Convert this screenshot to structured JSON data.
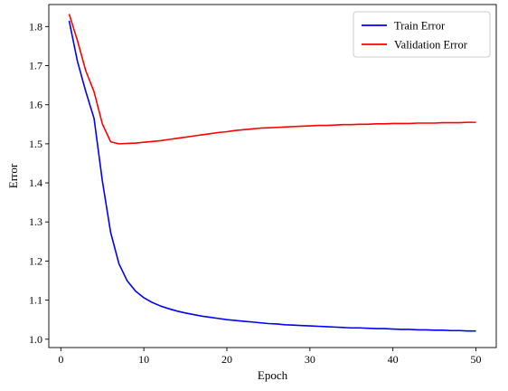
{
  "chart_data": {
    "type": "line",
    "xlabel": "Epoch",
    "ylabel": "Error",
    "xlim": [
      -1.45,
      52.45
    ],
    "ylim": [
      0.9786,
      1.8564
    ],
    "xticks": [
      0,
      10,
      20,
      30,
      40,
      50
    ],
    "yticks": [
      1.0,
      1.1,
      1.2,
      1.3,
      1.4,
      1.5,
      1.6,
      1.7,
      1.8
    ],
    "ytick_labels": [
      "1.0",
      "1.1",
      "1.2",
      "1.3",
      "1.4",
      "1.5",
      "1.6",
      "1.7",
      "1.8"
    ],
    "grid": false,
    "legend_position": "top-right",
    "x": [
      1,
      2,
      3,
      4,
      5,
      6,
      7,
      8,
      9,
      10,
      11,
      12,
      13,
      14,
      15,
      16,
      17,
      18,
      19,
      20,
      21,
      22,
      23,
      24,
      25,
      26,
      27,
      28,
      29,
      30,
      31,
      32,
      33,
      34,
      35,
      36,
      37,
      38,
      39,
      40,
      41,
      42,
      43,
      44,
      45,
      46,
      47,
      48,
      49,
      50
    ],
    "series": [
      {
        "name": "Train Error",
        "color": "#0000ff",
        "values": [
          1.815,
          1.711,
          1.634,
          1.565,
          1.405,
          1.273,
          1.193,
          1.149,
          1.123,
          1.106,
          1.094,
          1.085,
          1.078,
          1.072,
          1.067,
          1.063,
          1.059,
          1.056,
          1.053,
          1.05,
          1.048,
          1.046,
          1.044,
          1.042,
          1.04,
          1.039,
          1.037,
          1.036,
          1.035,
          1.034,
          1.033,
          1.032,
          1.031,
          1.03,
          1.029,
          1.029,
          1.028,
          1.027,
          1.027,
          1.026,
          1.025,
          1.025,
          1.024,
          1.024,
          1.023,
          1.023,
          1.022,
          1.022,
          1.021,
          1.021
        ]
      },
      {
        "name": "Validation Error",
        "color": "#ff0000",
        "values": [
          1.832,
          1.764,
          1.687,
          1.633,
          1.551,
          1.505,
          1.5,
          1.501,
          1.502,
          1.504,
          1.506,
          1.508,
          1.511,
          1.514,
          1.517,
          1.52,
          1.523,
          1.526,
          1.529,
          1.531,
          1.534,
          1.536,
          1.538,
          1.54,
          1.541,
          1.542,
          1.543,
          1.544,
          1.545,
          1.546,
          1.547,
          1.547,
          1.548,
          1.549,
          1.549,
          1.55,
          1.55,
          1.551,
          1.551,
          1.552,
          1.552,
          1.552,
          1.553,
          1.553,
          1.553,
          1.554,
          1.554,
          1.554,
          1.555,
          1.555
        ]
      }
    ]
  }
}
